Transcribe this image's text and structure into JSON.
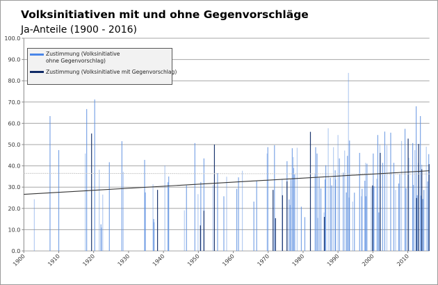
{
  "chart_data": {
    "type": "bar",
    "title": "Volksinitiativen mit und ohne Gegenvorschläge",
    "subtitle": "Ja-Anteile (1900 - 2016)",
    "xlabel": "",
    "ylabel": "",
    "xlim": [
      1900,
      2016.2
    ],
    "ylim": [
      0,
      100
    ],
    "x_ticks": [
      "1900",
      "1910",
      "1920",
      "1930",
      "1940",
      "1950",
      "1960",
      "1970",
      "1980",
      "1990",
      "2000",
      "2010"
    ],
    "y_ticks": [
      "0.0",
      "10.0",
      "20.0",
      "30.0",
      "40.0",
      "50.0",
      "60.0",
      "70.0",
      "80.0",
      "90.0",
      "100.0"
    ],
    "grid": true,
    "legend_placement": "top-left",
    "series": [
      {
        "name": "Zustimmung (Volksinitiative ohne Gegenvorschlag)",
        "color": "#5b8ee0",
        "points": [
          [
            1903.0,
            24.3
          ],
          [
            1907.5,
            63.4
          ],
          [
            1910.0,
            47.4
          ],
          [
            1917.6,
            45.8
          ],
          [
            1918.0,
            66.7
          ],
          [
            1920.3,
            71.2
          ],
          [
            1921.6,
            38.2
          ],
          [
            1922.1,
            12.5
          ],
          [
            1922.2,
            11.0
          ],
          [
            1922.6,
            26.5
          ],
          [
            1924.5,
            41.7
          ],
          [
            1928.1,
            51.6
          ],
          [
            1928.5,
            37.2
          ],
          [
            1934.6,
            42.8
          ],
          [
            1934.8,
            27.5
          ],
          [
            1937.0,
            31.3
          ],
          [
            1937.2,
            15.0
          ],
          [
            1937.3,
            13.5
          ],
          [
            1940.4,
            40.2
          ],
          [
            1941.3,
            32.3
          ],
          [
            1941.5,
            35.0
          ],
          [
            1946.0,
            19.1
          ],
          [
            1946.6,
            30.8
          ],
          [
            1949.0,
            50.7
          ],
          [
            1949.9,
            26.7
          ],
          [
            1950.7,
            32.4
          ],
          [
            1951.6,
            43.5
          ],
          [
            1954.2,
            31.0
          ],
          [
            1955.5,
            36.6
          ],
          [
            1957.3,
            25.7
          ],
          [
            1958.1,
            34.9
          ],
          [
            1961.0,
            29.2
          ],
          [
            1961.5,
            34.6
          ],
          [
            1962.6,
            37.7
          ],
          [
            1965.9,
            23.2
          ],
          [
            1966.7,
            32.8
          ],
          [
            1969.7,
            45.8
          ],
          [
            1969.9,
            48.8
          ],
          [
            1971.8,
            49.7
          ],
          [
            1974.0,
            33.9
          ],
          [
            1975.4,
            42.2
          ],
          [
            1976.0,
            24.2
          ],
          [
            1976.3,
            21.6
          ],
          [
            1976.5,
            33.6
          ],
          [
            1976.9,
            48.3
          ],
          [
            1977.2,
            44.1
          ],
          [
            1977.3,
            39.0
          ],
          [
            1977.6,
            36.0
          ],
          [
            1978.3,
            48.5
          ],
          [
            1979.5,
            20.8
          ],
          [
            1980.5,
            15.9
          ],
          [
            1983.4,
            36.0
          ],
          [
            1983.6,
            48.8
          ],
          [
            1984.0,
            45.8
          ],
          [
            1984.2,
            15.5
          ],
          [
            1984.6,
            34.4
          ],
          [
            1985.1,
            29.4
          ],
          [
            1986.0,
            18.1
          ],
          [
            1986.3,
            33.6
          ],
          [
            1986.5,
            40.3
          ],
          [
            1987.2,
            57.7
          ],
          [
            1987.8,
            34.4
          ],
          [
            1988.2,
            30.8
          ],
          [
            1988.7,
            48.8
          ],
          [
            1989.2,
            37.9
          ],
          [
            1989.3,
            33.6
          ],
          [
            1990.0,
            54.5
          ],
          [
            1990.4,
            43.5
          ],
          [
            1991.5,
            36.8
          ],
          [
            1991.9,
            47.2
          ],
          [
            1992.4,
            27.5
          ],
          [
            1992.7,
            44.7
          ],
          [
            1993.0,
            83.7
          ],
          [
            1993.2,
            25.1
          ],
          [
            1993.3,
            51.9
          ],
          [
            1994.2,
            23.2
          ],
          [
            1994.7,
            27.4
          ],
          [
            1996.2,
            46.1
          ],
          [
            1996.7,
            25.7
          ],
          [
            1996.9,
            29.2
          ],
          [
            1997.7,
            33.0
          ],
          [
            1997.9,
            41.4
          ],
          [
            1998.0,
            25.7
          ],
          [
            1998.3,
            41.0
          ],
          [
            1999.5,
            29.7
          ],
          [
            2000.1,
            45.8
          ],
          [
            2000.3,
            30.4
          ],
          [
            2001.1,
            33.9
          ],
          [
            2001.4,
            54.5
          ],
          [
            2001.7,
            18.1
          ],
          [
            2002.0,
            49.9
          ],
          [
            2002.8,
            41.4
          ],
          [
            2003.4,
            56.1
          ],
          [
            2004.0,
            49.7
          ],
          [
            2005.1,
            55.6
          ],
          [
            2006.0,
            41.4
          ],
          [
            2006.5,
            28.7
          ],
          [
            2007.4,
            31.7
          ],
          [
            2007.7,
            36.0
          ],
          [
            2008.2,
            51.7
          ],
          [
            2009.2,
            57.4
          ],
          [
            2009.5,
            29.5
          ],
          [
            2010.3,
            43.8
          ],
          [
            2011.4,
            50.7
          ],
          [
            2011.6,
            31.0
          ],
          [
            2012.0,
            47.4
          ],
          [
            2012.4,
            68.0
          ],
          [
            2012.7,
            26.2
          ],
          [
            2013.0,
            41.4
          ],
          [
            2013.6,
            63.4
          ],
          [
            2013.7,
            26.0
          ],
          [
            2014.0,
            40.6
          ],
          [
            2014.3,
            24.4
          ],
          [
            2014.6,
            28.7
          ],
          [
            2015.3,
            49.0
          ],
          [
            2015.7,
            32.7
          ],
          [
            2016.0,
            45.5
          ]
        ]
      },
      {
        "name": "Zustimmung (Volksinitiative mit Gegenvorschlag)",
        "color": "#0f2a66",
        "points": [
          [
            1919.4,
            55.2
          ],
          [
            1938.3,
            28.7
          ],
          [
            1950.6,
            12.0
          ],
          [
            1951.6,
            18.9
          ],
          [
            1954.6,
            50.0
          ],
          [
            1971.4,
            28.7
          ],
          [
            1972.1,
            15.4
          ],
          [
            1974.1,
            26.2
          ],
          [
            1975.4,
            32.7
          ],
          [
            1982.1,
            56.0
          ],
          [
            1986.1,
            16.0
          ],
          [
            1999.9,
            30.8
          ],
          [
            2002.1,
            46.1
          ],
          [
            2010.1,
            52.8
          ],
          [
            2012.5,
            24.9
          ],
          [
            2013.1,
            50.3
          ],
          [
            2014.0,
            38.4
          ],
          [
            2016.1,
            40.8
          ]
        ]
      }
    ],
    "trendline": {
      "color": "#333333",
      "start": [
        1900,
        26.6
      ],
      "end": [
        2016.2,
        37.7
      ]
    },
    "mean_line": {
      "color": "#c8c8c8",
      "value": 36.5
    }
  }
}
